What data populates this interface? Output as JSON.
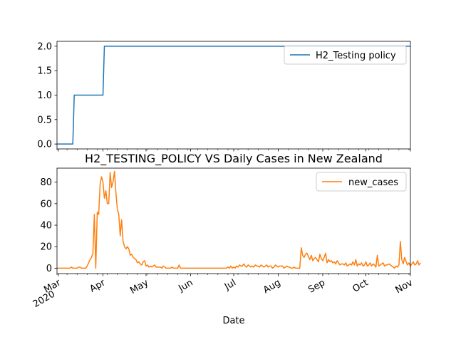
{
  "chart_data": [
    {
      "type": "line",
      "title": "",
      "xlabel": "",
      "ylabel": "",
      "xlim": [
        "2020-02-29",
        "2020-11-01"
      ],
      "ylim": [
        -0.1,
        2.1
      ],
      "yticks": [
        "0.0",
        "0.5",
        "1.0",
        "1.5",
        "2.0"
      ],
      "legend": {
        "position": "upper right",
        "entries": [
          "H2_Testing policy"
        ]
      },
      "series": [
        {
          "name": "H2_Testing policy",
          "color": "#1f77b4",
          "x": [
            "2020-02-29",
            "2020-03-11",
            "2020-03-12",
            "2020-04-01",
            "2020-04-02",
            "2020-11-01"
          ],
          "values": [
            0,
            0,
            1,
            1,
            2,
            2
          ]
        }
      ]
    },
    {
      "type": "line",
      "title": "H2_TESTING_POLICY VS Daily Cases in New Zealand",
      "xlabel": "Date",
      "ylabel": "",
      "xlim": [
        "2020-02-29",
        "2020-11-01"
      ],
      "ylim": [
        -5,
        93
      ],
      "yticks": [
        "0",
        "20",
        "40",
        "60",
        "80"
      ],
      "xticks": [
        {
          "date": "2020-03-01",
          "label": "Mar",
          "sublabel": "2020"
        },
        {
          "date": "2020-04-01",
          "label": "Apr",
          "sublabel": ""
        },
        {
          "date": "2020-05-01",
          "label": "May",
          "sublabel": ""
        },
        {
          "date": "2020-06-01",
          "label": "Jun",
          "sublabel": ""
        },
        {
          "date": "2020-07-01",
          "label": "Jul",
          "sublabel": ""
        },
        {
          "date": "2020-08-01",
          "label": "Aug",
          "sublabel": ""
        },
        {
          "date": "2020-09-01",
          "label": "Sep",
          "sublabel": ""
        },
        {
          "date": "2020-10-01",
          "label": "Oct",
          "sublabel": ""
        },
        {
          "date": "2020-11-01",
          "label": "Nov",
          "sublabel": ""
        }
      ],
      "legend": {
        "position": "upper right",
        "entries": [
          "new_cases"
        ]
      },
      "series": [
        {
          "name": "new_cases",
          "color": "#ff7f0e",
          "start_date": "2020-02-29",
          "values": [
            0,
            0,
            0,
            0,
            0,
            0,
            0,
            0,
            0,
            0,
            1,
            0,
            0,
            0,
            0,
            1,
            1,
            0,
            0,
            0,
            0,
            2,
            5,
            8,
            10,
            14,
            50,
            0,
            52,
            50,
            78,
            85,
            80,
            65,
            72,
            60,
            60,
            89,
            75,
            80,
            90,
            70,
            55,
            50,
            30,
            45,
            25,
            20,
            18,
            20,
            18,
            12,
            13,
            10,
            9,
            8,
            5,
            6,
            4,
            3,
            6,
            7,
            2,
            3,
            1,
            2,
            1,
            2,
            3,
            1,
            1,
            1,
            1,
            0,
            2,
            1,
            0,
            0,
            0,
            0,
            1,
            0,
            0,
            0,
            0,
            3,
            0,
            0,
            0,
            0,
            0,
            0,
            0,
            0,
            0,
            0,
            0,
            0,
            0,
            0,
            0,
            0,
            0,
            0,
            0,
            0,
            0,
            0,
            0,
            0,
            0,
            0,
            0,
            0,
            0,
            0,
            0,
            0,
            0,
            1,
            0,
            2,
            0,
            1,
            0,
            2,
            1,
            3,
            2,
            2,
            4,
            2,
            1,
            3,
            2,
            1,
            2,
            1,
            3,
            2,
            2,
            1,
            3,
            2,
            1,
            2,
            3,
            1,
            2,
            2,
            0,
            1,
            3,
            2,
            1,
            2,
            2,
            2,
            0,
            1,
            2,
            1,
            1,
            0,
            0,
            1,
            0,
            0,
            0,
            0,
            19,
            12,
            10,
            13,
            14,
            11,
            8,
            12,
            7,
            9,
            10,
            8,
            6,
            13,
            9,
            7,
            10,
            14,
            5,
            8,
            6,
            7,
            5,
            6,
            4,
            7,
            5,
            3,
            4,
            4,
            3,
            5,
            2,
            3,
            4,
            3,
            6,
            3,
            8,
            2,
            4,
            3,
            5,
            2,
            3,
            6,
            2,
            3,
            5,
            2,
            4,
            3,
            1,
            12,
            2,
            3,
            4,
            5,
            2,
            3,
            3,
            4,
            3,
            2,
            1,
            0,
            2,
            1,
            3,
            25,
            8,
            4,
            10,
            6,
            3,
            5,
            2,
            4,
            6,
            3,
            4,
            7,
            3,
            5
          ]
        }
      ]
    }
  ]
}
